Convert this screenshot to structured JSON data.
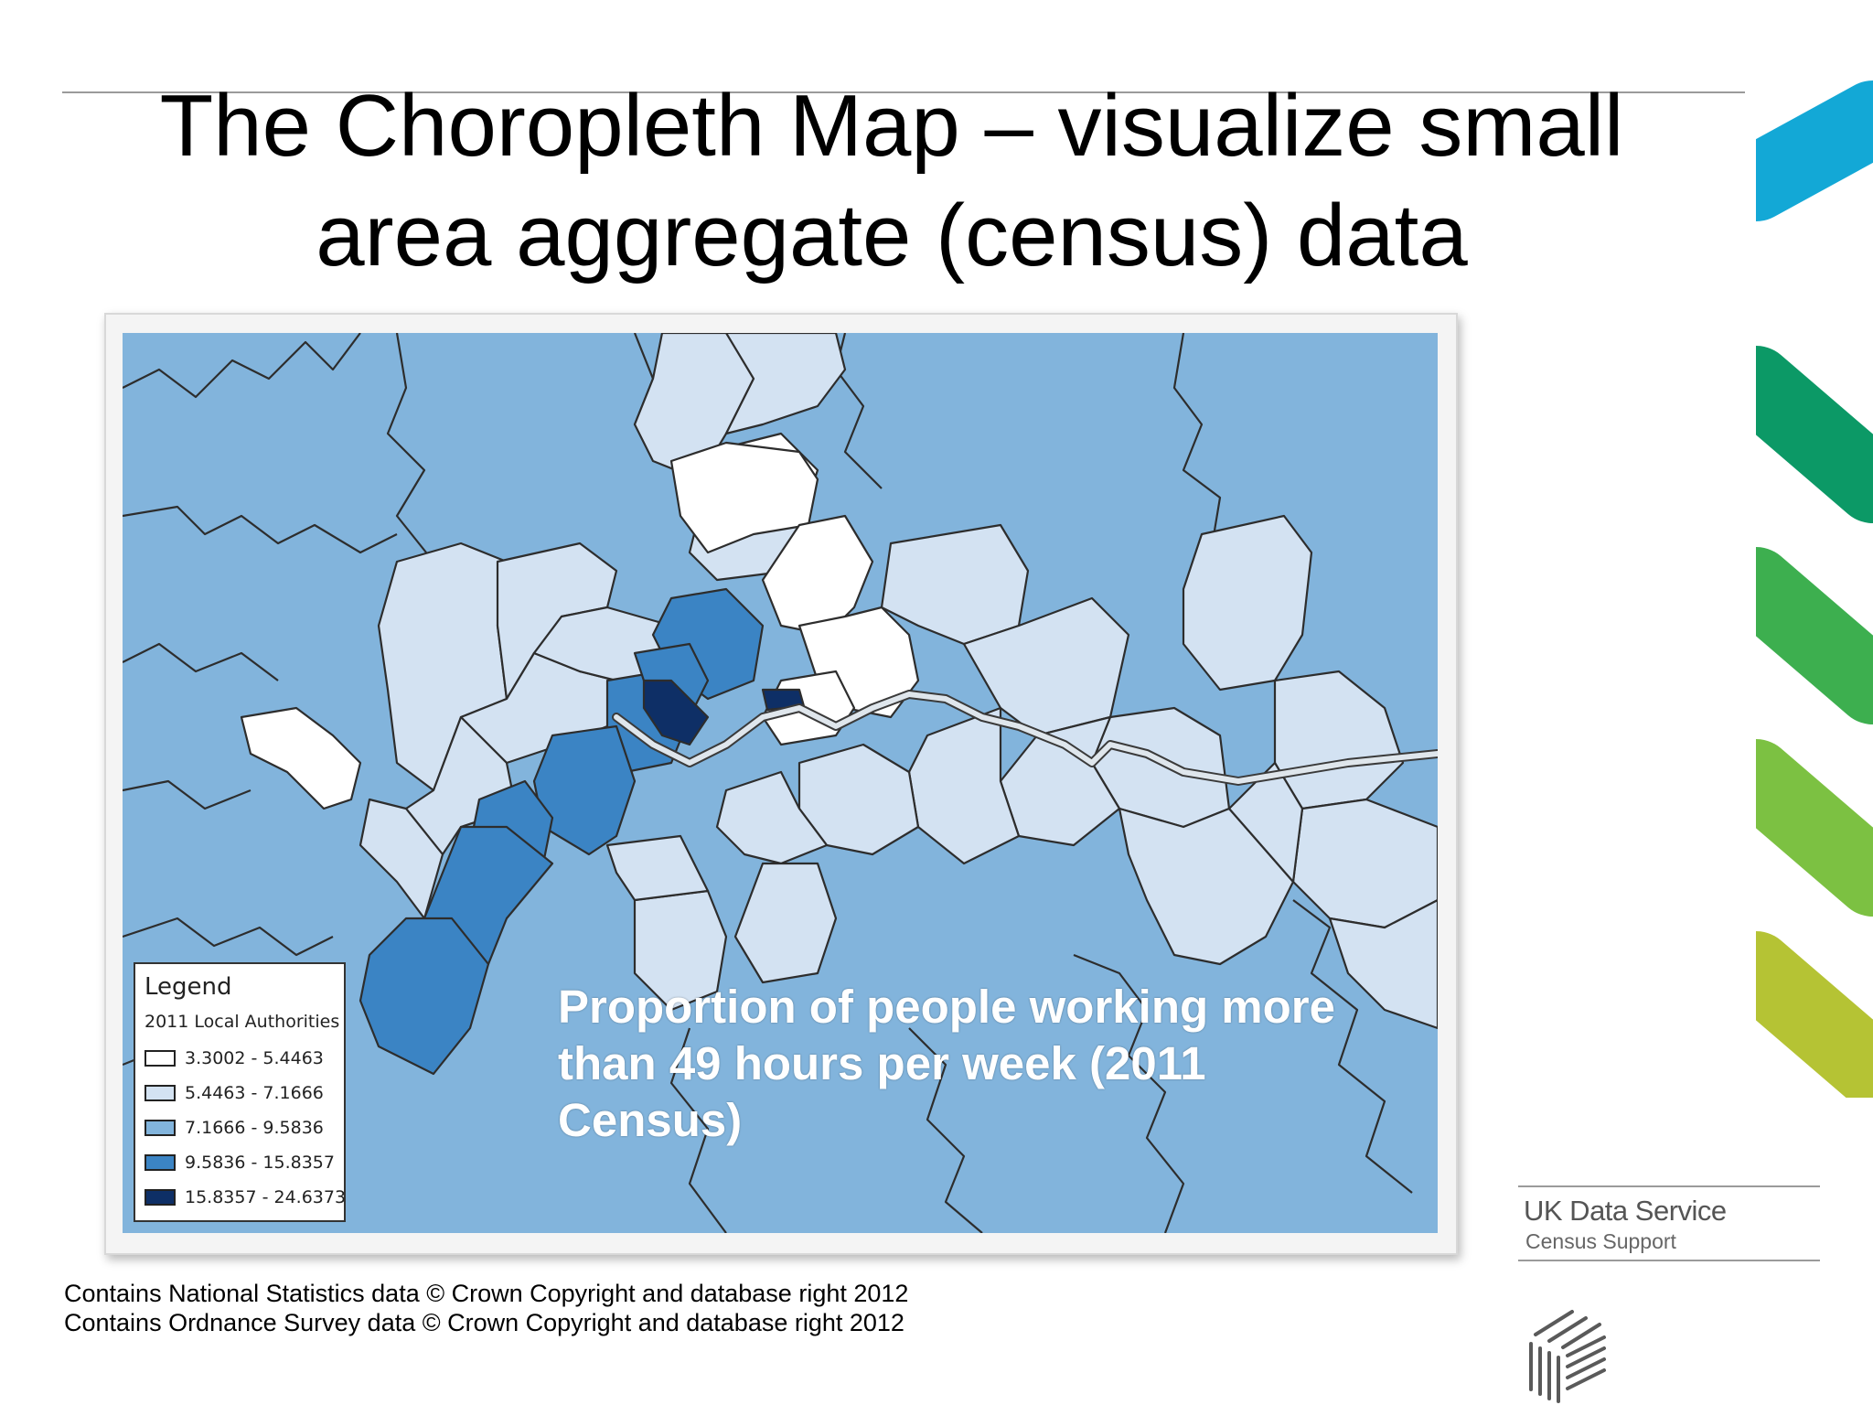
{
  "slide": {
    "title_line1": "The Choropleth Map – visualize small",
    "title_line2": "area aggregate (census) data"
  },
  "map": {
    "caption_line1": "Proportion of people working more",
    "caption_line2": "than 49 hours per week (2011",
    "caption_line3": "Census)",
    "legend": {
      "title": "Legend",
      "subtitle": "2011 Local Authorities",
      "classes": [
        {
          "label": "3.3002 - 5.4463",
          "color": "#ffffff"
        },
        {
          "label": "5.4463 - 7.1666",
          "color": "#d3e2f2"
        },
        {
          "label": "7.1666 - 9.5836",
          "color": "#82b4dc"
        },
        {
          "label": "9.5836 - 15.8357",
          "color": "#3b84c4"
        },
        {
          "label": "15.8357 - 24.6373",
          "color": "#0e2f66"
        }
      ]
    },
    "river_color": "#dfe6ec"
  },
  "credits": {
    "line1": "Contains National Statistics data © Crown Copyright and database right 2012",
    "line2": "Contains Ordnance Survey data © Crown Copyright and database right 2012"
  },
  "brand": {
    "name": "UK Data Service",
    "sub": "Census Support",
    "logo_icon": "ukds-hatched-cube-icon"
  },
  "decoration": {
    "stripe_colors": [
      "#13a8d6",
      "#0c9966",
      "#3daf4f",
      "#7cc142",
      "#b5c334"
    ]
  }
}
